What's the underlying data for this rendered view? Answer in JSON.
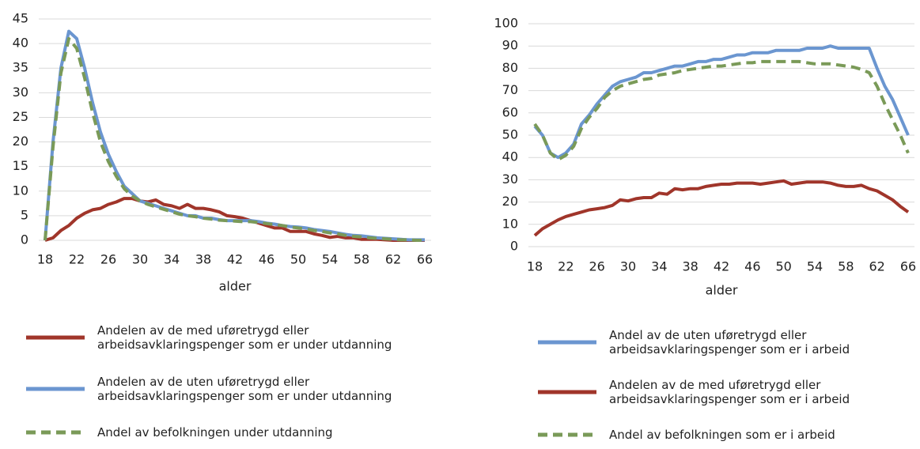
{
  "chart_data": [
    {
      "type": "line",
      "xlabel": "alder",
      "x": [
        18,
        19,
        20,
        21,
        22,
        23,
        24,
        25,
        26,
        27,
        28,
        29,
        30,
        31,
        32,
        33,
        34,
        35,
        36,
        37,
        38,
        39,
        40,
        41,
        42,
        43,
        44,
        45,
        46,
        47,
        48,
        49,
        50,
        51,
        52,
        53,
        54,
        55,
        56,
        57,
        58,
        59,
        60,
        61,
        62,
        63,
        64,
        65,
        66
      ],
      "xlim": [
        18,
        66
      ],
      "xticks": [
        18,
        22,
        26,
        30,
        34,
        38,
        42,
        46,
        50,
        54,
        58,
        62,
        66
      ],
      "ylim": [
        0,
        45
      ],
      "yticks": [
        0,
        5,
        10,
        15,
        20,
        25,
        30,
        35,
        40,
        45
      ],
      "grid": true,
      "series": [
        {
          "name": "Andelen av de med uføretrygd eller\narbeidsavklaringspenger som er under utdanning",
          "color": "#a0352a",
          "dash": false,
          "values": [
            0,
            0.5,
            2,
            3,
            4.5,
            5.5,
            6.2,
            6.5,
            7.3,
            7.8,
            8.5,
            8.5,
            8,
            7.8,
            8.2,
            7.3,
            7,
            6.5,
            7.3,
            6.5,
            6.5,
            6.2,
            5.8,
            5,
            4.8,
            4.5,
            4,
            3.5,
            3,
            2.5,
            2.5,
            1.8,
            1.8,
            1.8,
            1.3,
            1,
            0.6,
            0.8,
            0.5,
            0.5,
            0.2,
            0.2,
            0.2,
            0.1,
            0,
            0,
            0,
            0,
            0
          ]
        },
        {
          "name": "Andelen av de uten uføretrygd eller\narbeidsavklaringspenger som er under utdanning",
          "color": "#6b96d0",
          "dash": false,
          "values": [
            0,
            20,
            35,
            42.5,
            41,
            35,
            28,
            22,
            17.5,
            14,
            11,
            9.5,
            8,
            7.5,
            7,
            6.5,
            6,
            5.5,
            5,
            5,
            4.5,
            4.5,
            4.2,
            4,
            4,
            4,
            4,
            3.8,
            3.5,
            3.3,
            3,
            2.8,
            2.7,
            2.5,
            2.2,
            2,
            1.8,
            1.5,
            1.2,
            1,
            0.9,
            0.7,
            0.5,
            0.4,
            0.3,
            0.2,
            0.1,
            0.1,
            0.1
          ]
        },
        {
          "name": "Andel av befolkningen under utdanning",
          "color": "#7a9a58",
          "dash": true,
          "values": [
            0,
            19,
            34,
            41,
            39,
            33,
            26,
            20,
            16,
            13,
            10.5,
            9,
            8,
            7.3,
            6.8,
            6.3,
            5.8,
            5.3,
            5,
            4.8,
            4.5,
            4.3,
            4.1,
            4,
            3.9,
            3.8,
            3.8,
            3.6,
            3.4,
            3.2,
            3,
            2.7,
            2.5,
            2.3,
            2,
            1.8,
            1.5,
            1.3,
            1,
            0.8,
            0.7,
            0.5,
            0.4,
            0.3,
            0.2,
            0.1,
            0.1,
            0,
            0
          ]
        }
      ]
    },
    {
      "type": "line",
      "xlabel": "alder",
      "x": [
        18,
        19,
        20,
        21,
        22,
        23,
        24,
        25,
        26,
        27,
        28,
        29,
        30,
        31,
        32,
        33,
        34,
        35,
        36,
        37,
        38,
        39,
        40,
        41,
        42,
        43,
        44,
        45,
        46,
        47,
        48,
        49,
        50,
        51,
        52,
        53,
        54,
        55,
        56,
        57,
        58,
        59,
        60,
        61,
        62,
        63,
        64,
        65,
        66
      ],
      "xlim": [
        18,
        66
      ],
      "xticks": [
        18,
        22,
        26,
        30,
        34,
        38,
        42,
        46,
        50,
        54,
        58,
        62,
        66
      ],
      "ylim": [
        0,
        100
      ],
      "yticks": [
        0,
        10,
        20,
        30,
        40,
        50,
        60,
        70,
        80,
        90,
        100
      ],
      "grid": true,
      "series": [
        {
          "name": "Andel av de uten uføretrygd eller\narbeidsavklaringspenger  som er i arbeid",
          "color": "#6b96d0",
          "dash": false,
          "values": [
            54,
            50,
            42,
            40,
            42,
            46,
            55,
            59,
            64,
            68,
            72,
            74,
            75,
            76,
            78,
            78,
            79,
            80,
            81,
            81,
            82,
            83,
            83,
            84,
            84,
            85,
            86,
            86,
            87,
            87,
            87,
            88,
            88,
            88,
            88,
            89,
            89,
            89,
            90,
            89,
            89,
            89,
            89,
            89,
            80,
            72,
            66,
            58,
            50
          ]
        },
        {
          "name": "Andelen av de med uføretrygd eller\narbeidsavklaringspenger som er i arbeid",
          "color": "#a0352a",
          "dash": false,
          "values": [
            5,
            8,
            10,
            12,
            13.5,
            14.5,
            15.5,
            16.5,
            17,
            17.5,
            18.5,
            21,
            20.5,
            21.5,
            22,
            22,
            24,
            23.5,
            26,
            25.5,
            26,
            26,
            27,
            27.5,
            28,
            28,
            28.5,
            28.5,
            28.5,
            28,
            28.5,
            29,
            29.5,
            28,
            28.5,
            29,
            29,
            29,
            28.5,
            27.5,
            27,
            27,
            27.5,
            26,
            25,
            23,
            21,
            18,
            15.5
          ]
        },
        {
          "name": "Andel av befolkningen som er i arbeid",
          "color": "#7a9a58",
          "dash": true,
          "values": [
            55,
            50,
            42,
            39,
            41,
            45,
            53,
            58,
            62,
            67,
            70,
            72,
            73,
            74,
            75,
            75.5,
            77,
            77.5,
            78,
            79,
            79.5,
            80,
            80.5,
            81,
            81,
            81.5,
            82,
            82.5,
            82.5,
            83,
            83,
            83,
            83,
            83,
            83,
            82.5,
            82,
            82,
            82,
            81.5,
            81,
            80.5,
            79.5,
            78,
            72,
            64,
            57,
            50,
            42
          ]
        }
      ]
    }
  ]
}
